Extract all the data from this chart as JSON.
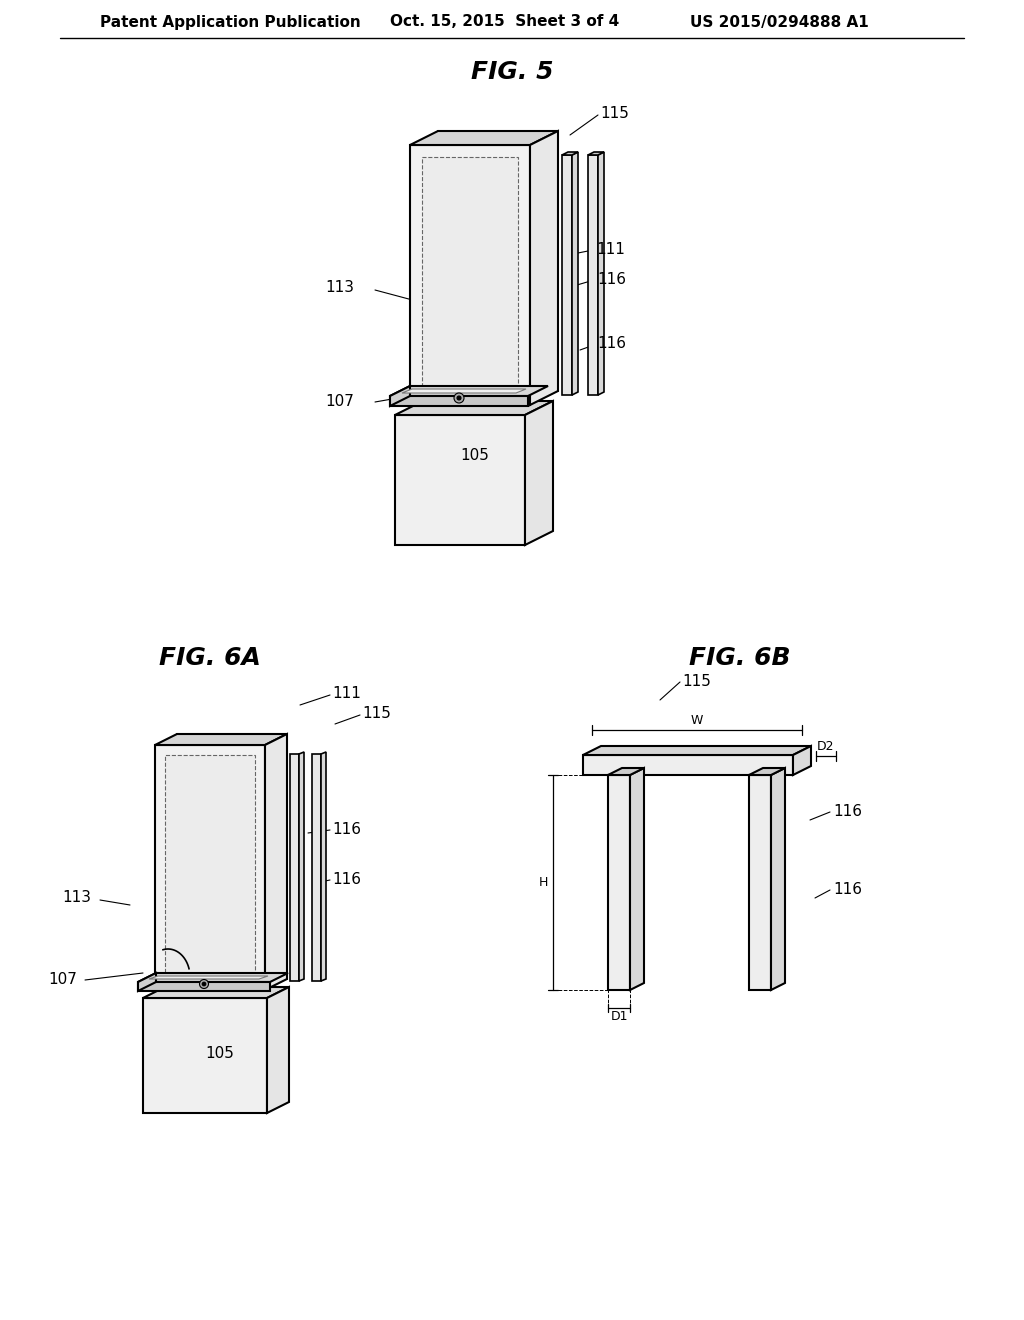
{
  "background_color": "#ffffff",
  "header_left": "Patent Application Publication",
  "header_center": "Oct. 15, 2015  Sheet 3 of 4",
  "header_right": "US 2015/0294888 A1",
  "header_fontsize": 11,
  "fig5_title": "FIG. 5",
  "fig6a_title": "FIG. 6A",
  "fig6b_title": "FIG. 6B",
  "title_fontsize": 18,
  "label_fontsize": 11
}
